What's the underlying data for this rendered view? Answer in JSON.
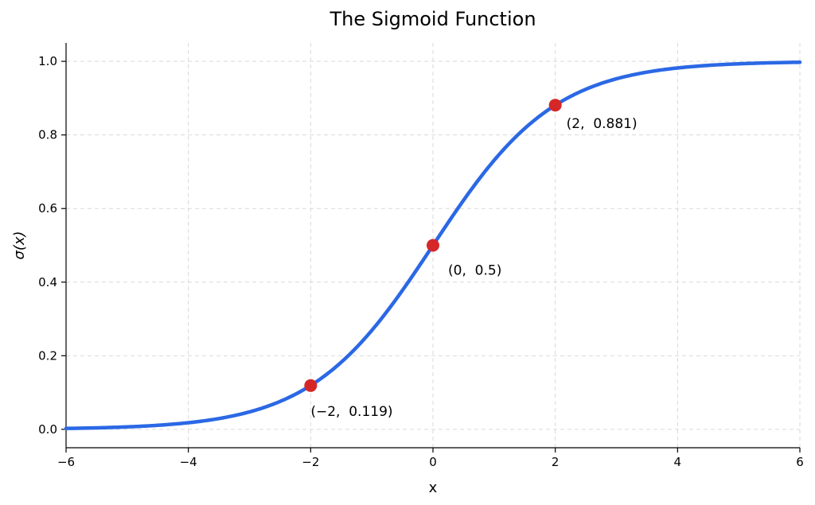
{
  "chart_data": {
    "type": "line",
    "title": "The Sigmoid Function",
    "xlabel": "x",
    "ylabel": "σ(x)",
    "xlim": [
      -6,
      6
    ],
    "ylim": [
      -0.05,
      1.05
    ],
    "x_ticks": [
      -6,
      -4,
      -2,
      0,
      2,
      4,
      6
    ],
    "x_tick_labels": [
      "−6",
      "−4",
      "−2",
      "0",
      "2",
      "4",
      "6"
    ],
    "y_ticks": [
      0.0,
      0.2,
      0.4,
      0.6,
      0.8,
      1.0
    ],
    "y_tick_labels": [
      "0.0",
      "0.2",
      "0.4",
      "0.6",
      "0.8",
      "1.0"
    ],
    "grid": true,
    "series": [
      {
        "function": "sigmoid",
        "color": "#2b68e5",
        "x": [
          -6,
          -5,
          -4,
          -3,
          -2,
          -1,
          0,
          1,
          2,
          3,
          4,
          5,
          6
        ],
        "y": [
          0.0025,
          0.0067,
          0.018,
          0.047,
          0.119,
          0.269,
          0.5,
          0.731,
          0.881,
          0.953,
          0.982,
          0.9933,
          0.9975
        ]
      }
    ],
    "points": [
      {
        "x": -2,
        "y": 0.119,
        "label": "(−2,  0.119)",
        "color": "#d62728"
      },
      {
        "x": 0,
        "y": 0.5,
        "label": "(0,  0.5)",
        "color": "#d62728"
      },
      {
        "x": 2,
        "y": 0.881,
        "label": "(2,  0.881)",
        "color": "#d62728"
      }
    ]
  }
}
